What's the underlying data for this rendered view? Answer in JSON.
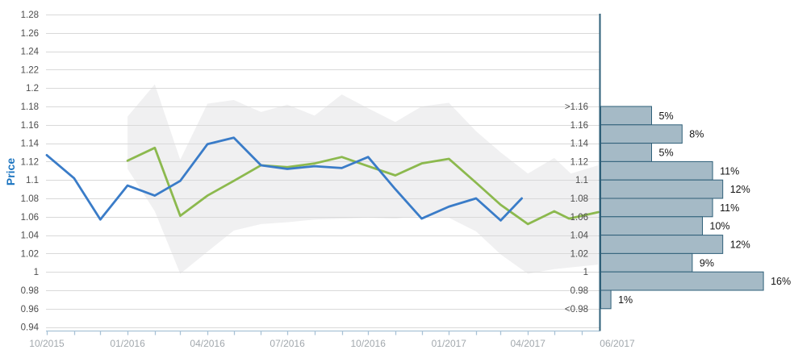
{
  "chart_data": {
    "type": "line",
    "description": "Exchange-rate style price history with forecast line, confidence band and forecast probability histogram for 06/2017",
    "price_axis": {
      "label": "Price",
      "min": 0.94,
      "max": 1.28,
      "tick_step": 0.02,
      "tick_labels": [
        "1.28",
        "1.26",
        "1.24",
        "1.22",
        "1.2",
        "1.18",
        "1.16",
        "1.14",
        "1.12",
        "1.1",
        "1.08",
        "1.06",
        "1.04",
        "1.02",
        "1",
        "0.98",
        "0.96",
        "0.94"
      ]
    },
    "time_axis": {
      "minor_ticks": "monthly",
      "tick_labels": [
        {
          "text": "10/2015",
          "date": "2015-10-01"
        },
        {
          "text": "01/2016",
          "date": "2016-01-01"
        },
        {
          "text": "04/2016",
          "date": "2016-04-01"
        },
        {
          "text": "07/2016",
          "date": "2016-07-01"
        },
        {
          "text": "10/2016",
          "date": "2016-10-01"
        },
        {
          "text": "01/2017",
          "date": "2017-01-01"
        },
        {
          "text": "04/2017",
          "date": "2017-04-01"
        },
        {
          "text": "06/2017",
          "date": "2017-06-01"
        }
      ]
    },
    "series": [
      {
        "name": "price-history-line",
        "color": "#3a7cc8",
        "points": [
          [
            "2015-10-01",
            1.127
          ],
          [
            "2015-11-01",
            1.102
          ],
          [
            "2015-12-01",
            1.057
          ],
          [
            "2016-01-01",
            1.094
          ],
          [
            "2016-02-01",
            1.083
          ],
          [
            "2016-03-01",
            1.099
          ],
          [
            "2016-04-01",
            1.139
          ],
          [
            "2016-05-01",
            1.146
          ],
          [
            "2016-06-01",
            1.116
          ],
          [
            "2016-07-01",
            1.112
          ],
          [
            "2016-08-01",
            1.115
          ],
          [
            "2016-09-01",
            1.113
          ],
          [
            "2016-10-01",
            1.125
          ],
          [
            "2016-11-01",
            1.09
          ],
          [
            "2016-12-01",
            1.058
          ],
          [
            "2017-01-01",
            1.071
          ],
          [
            "2017-02-01",
            1.08
          ],
          [
            "2017-03-01",
            1.056
          ],
          [
            "2017-03-25",
            1.08
          ]
        ]
      },
      {
        "name": "forecast-line",
        "color": "#8cb94e",
        "points": [
          [
            "2016-01-01",
            1.121
          ],
          [
            "2016-02-01",
            1.135
          ],
          [
            "2016-03-01",
            1.061
          ],
          [
            "2016-04-01",
            1.083
          ],
          [
            "2016-05-01",
            1.099
          ],
          [
            "2016-06-01",
            1.116
          ],
          [
            "2016-07-01",
            1.114
          ],
          [
            "2016-08-01",
            1.118
          ],
          [
            "2016-09-01",
            1.125
          ],
          [
            "2016-10-01",
            1.115
          ],
          [
            "2016-11-01",
            1.105
          ],
          [
            "2016-12-01",
            1.118
          ],
          [
            "2017-01-01",
            1.123
          ],
          [
            "2017-02-01",
            1.097
          ],
          [
            "2017-03-01",
            1.073
          ],
          [
            "2017-04-01",
            1.052
          ],
          [
            "2017-05-01",
            1.066
          ],
          [
            "2017-05-18",
            1.058
          ],
          [
            "2017-06-20",
            1.065
          ]
        ]
      }
    ],
    "confidence_band": {
      "name": "confidence-band",
      "color": "#f0f0f1",
      "upper": [
        [
          "2016-01-01",
          1.169
        ],
        [
          "2016-02-01",
          1.204
        ],
        [
          "2016-03-01",
          1.122
        ],
        [
          "2016-04-01",
          1.183
        ],
        [
          "2016-05-01",
          1.187
        ],
        [
          "2016-06-01",
          1.174
        ],
        [
          "2016-07-01",
          1.182
        ],
        [
          "2016-08-01",
          1.17
        ],
        [
          "2016-09-01",
          1.193
        ],
        [
          "2016-10-01",
          1.178
        ],
        [
          "2016-11-01",
          1.163
        ],
        [
          "2016-12-01",
          1.18
        ],
        [
          "2017-01-01",
          1.184
        ],
        [
          "2017-02-01",
          1.153
        ],
        [
          "2017-03-01",
          1.13
        ],
        [
          "2017-04-01",
          1.107
        ],
        [
          "2017-05-01",
          1.124
        ],
        [
          "2017-05-20",
          1.107
        ],
        [
          "2017-06-20",
          1.116
        ]
      ],
      "lower": [
        [
          "2016-01-01",
          1.112
        ],
        [
          "2016-02-01",
          1.066
        ],
        [
          "2016-03-01",
          0.998
        ],
        [
          "2016-04-01",
          1.022
        ],
        [
          "2016-05-01",
          1.045
        ],
        [
          "2016-06-01",
          1.052
        ],
        [
          "2016-07-01",
          1.054
        ],
        [
          "2016-08-01",
          1.057
        ],
        [
          "2016-09-01",
          1.058
        ],
        [
          "2016-10-01",
          1.059
        ],
        [
          "2016-11-01",
          1.058
        ],
        [
          "2016-12-01",
          1.061
        ],
        [
          "2017-01-01",
          1.059
        ],
        [
          "2017-02-01",
          1.044
        ],
        [
          "2017-03-01",
          1.019
        ],
        [
          "2017-04-01",
          0.998
        ],
        [
          "2017-05-01",
          1.003
        ],
        [
          "2017-06-20",
          1.008
        ]
      ]
    },
    "forecast_histogram": {
      "date_label": "06/2017",
      "bin_edge_labels": [
        ">1.16",
        "1.16",
        "1.14",
        "1.12",
        "1.1",
        "1.08",
        "1.06",
        "1.04",
        "1.02",
        "1",
        "0.98",
        "<0.98"
      ],
      "percentages": [
        5,
        8,
        5,
        11,
        12,
        11,
        10,
        12,
        9,
        16,
        1
      ],
      "bar_labels": [
        "5%",
        "8%",
        "5%",
        "11%",
        "12%",
        "11%",
        "10%",
        "12%",
        "9%",
        "16%",
        "1%"
      ]
    }
  },
  "palette": {
    "history_line": "#3a7cc8",
    "forecast_line": "#8cb94e",
    "band_fill": "#f0f0f1",
    "bar_fill": "#a5bac6",
    "bar_border": "#2e5f78",
    "gridline": "#d9d9d9",
    "axis_line": "#a9c2d6",
    "y_tick_text": "#4d4d4d",
    "x_tick_text": "#a2a8ad",
    "bin_text": "#4d4d4d",
    "pct_text": "#141414",
    "price_label": "#1b74c0"
  }
}
